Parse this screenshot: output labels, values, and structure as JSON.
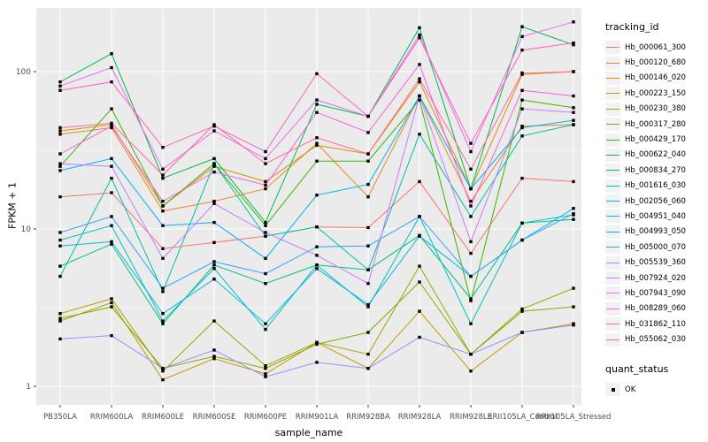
{
  "figure": {
    "panel_bg": "#EBEBEB",
    "grid_major_color": "#FFFFFF",
    "grid_minor_color": "#FFFFFF",
    "tick_label_color": "#4D4D4D",
    "point_color": "#000000"
  },
  "axes": {
    "x_title": "sample_name",
    "y_title": "FPKM + 1",
    "y_scale": "log10",
    "y_tick_labels": [
      "100",
      "10",
      "1"
    ],
    "y_tick_values": [
      100,
      10,
      1
    ],
    "y_minor_values": [
      31.62,
      3.162
    ]
  },
  "legend": {
    "tracking": {
      "title": "tracking_id"
    },
    "quant": {
      "title": "quant_status",
      "items": [
        {
          "label": "OK",
          "marker": "square",
          "color": "#000000"
        }
      ]
    }
  },
  "chart_data": {
    "type": "line",
    "title": "",
    "xlabel": "sample_name",
    "ylabel": "FPKM + 1",
    "ylim": [
      1,
      250
    ],
    "grid": true,
    "legend_position": "right",
    "marker": "black-square",
    "categories": [
      "PB350LA",
      "RRIM600LA",
      "RRIM600LE",
      "RRIM600SE",
      "RRIM600PE",
      "RRIM901LA",
      "RRIM928BA",
      "RRIM928LA",
      "RRIM928LE",
      "RRII105LA_Control",
      "RRII105LA_Stressed"
    ],
    "series": [
      {
        "name": "Hb_000061_300",
        "color": "#F8766D",
        "values": [
          16,
          17,
          7.5,
          8.2,
          9.0,
          10.3,
          10.2,
          20,
          7.0,
          21,
          20
        ]
      },
      {
        "name": "Hb_000120_680",
        "color": "#E88526",
        "values": [
          40,
          44,
          13,
          15,
          18,
          35,
          16,
          70,
          15,
          45,
          46
        ]
      },
      {
        "name": "Hb_000146_020",
        "color": "#D89000",
        "values": [
          42,
          46,
          14,
          25,
          20,
          34,
          30,
          86,
          18,
          96,
          100
        ]
      },
      {
        "name": "Hb_000223_150",
        "color": "#C09B00",
        "values": [
          2.6,
          3.4,
          1.1,
          1.5,
          1.2,
          1.9,
          1.3,
          3.0,
          1.25,
          2.2,
          2.5
        ]
      },
      {
        "name": "Hb_000230_380",
        "color": "#A3A500",
        "values": [
          2.9,
          3.6,
          1.25,
          2.6,
          1.35,
          1.9,
          1.6,
          5.8,
          1.6,
          3.1,
          4.2
        ]
      },
      {
        "name": "Hb_000317_280",
        "color": "#7CAE00",
        "values": [
          2.7,
          3.2,
          1.3,
          1.55,
          1.3,
          1.85,
          2.2,
          4.6,
          1.6,
          3.0,
          3.2
        ]
      },
      {
        "name": "Hb_000429_170",
        "color": "#39B600",
        "values": [
          25,
          58,
          14,
          26,
          10.5,
          27,
          27,
          66,
          3.5,
          66,
          59
        ]
      },
      {
        "name": "Hb_000622_040",
        "color": "#00BB4E",
        "values": [
          86,
          130,
          21,
          28,
          11,
          62,
          52,
          190,
          18,
          193,
          148
        ]
      },
      {
        "name": "Hb_000834_270",
        "color": "#00BF7D",
        "values": [
          5.8,
          8.0,
          2.5,
          5.9,
          4.5,
          5.9,
          5.5,
          9.1,
          3.6,
          10.9,
          11.5
        ]
      },
      {
        "name": "Hb_001616_030",
        "color": "#00C1A3",
        "values": [
          5.0,
          21,
          4.0,
          26,
          9.0,
          10.3,
          5.5,
          40,
          12,
          39,
          46
        ]
      },
      {
        "name": "Hb_002056_060",
        "color": "#00BFC4",
        "values": [
          8.5,
          10.5,
          2.6,
          5.6,
          2.3,
          5.9,
          3.2,
          12,
          2.5,
          10.9,
          12.3
        ]
      },
      {
        "name": "Hb_004951_040",
        "color": "#00BAE0",
        "values": [
          7.8,
          8.3,
          2.9,
          4.8,
          2.5,
          5.6,
          3.3,
          9.0,
          5.0,
          8.5,
          13.5
        ]
      },
      {
        "name": "Hb_004993_050",
        "color": "#00B0F6",
        "values": [
          23.5,
          28,
          10.5,
          11,
          6.5,
          16.4,
          19.2,
          70,
          18,
          44,
          49
        ]
      },
      {
        "name": "Hb_005000_070",
        "color": "#35A2FF",
        "values": [
          9.5,
          12,
          4.2,
          6.2,
          5.2,
          7.7,
          7.8,
          12,
          5.0,
          8.5,
          12.5
        ]
      },
      {
        "name": "Hb_005539_360",
        "color": "#9590FF",
        "values": [
          2.0,
          2.1,
          1.3,
          1.7,
          1.15,
          1.42,
          1.3,
          2.05,
          1.6,
          2.2,
          2.45
        ]
      },
      {
        "name": "Hb_007924_020",
        "color": "#C77CFF",
        "values": [
          26,
          25,
          6.5,
          14.5,
          9.5,
          6.8,
          4.5,
          70,
          8.3,
          58,
          55
        ]
      },
      {
        "name": "Hb_007943_090",
        "color": "#E76BF3",
        "values": [
          81,
          106,
          24,
          42,
          28,
          66,
          52,
          171,
          31,
          167,
          207
        ]
      },
      {
        "name": "Hb_008289_060",
        "color": "#FA62DB",
        "values": [
          30,
          45,
          15,
          23,
          19,
          55,
          41,
          111,
          14,
          76,
          70
        ]
      },
      {
        "name": "Hb_031862_110",
        "color": "#FF62BC",
        "values": [
          76,
          86,
          33,
          45,
          31,
          97,
          52,
          164,
          35,
          137,
          152
        ]
      },
      {
        "name": "Hb_055062_030",
        "color": "#FF6A98",
        "values": [
          44,
          47,
          22,
          46,
          26,
          38,
          30,
          90,
          24,
          98,
          100
        ]
      }
    ]
  }
}
